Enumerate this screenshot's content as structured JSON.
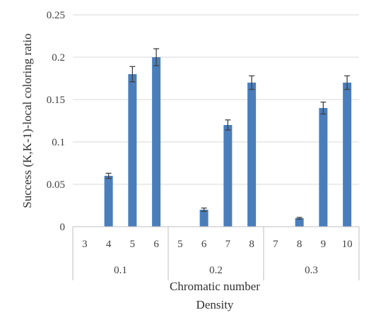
{
  "chart_data": {
    "type": "bar",
    "ylabel": "Success (K,K-1)-local coloring ratio",
    "xlabel": "Chromatic number",
    "xlabel2": "Density",
    "ylim": [
      0,
      0.25
    ],
    "yticks": [
      "0",
      "0.05",
      "0.1",
      "0.15",
      "0.2",
      "0.25"
    ],
    "grid": true,
    "groups": [
      {
        "label": "0.1",
        "categories": [
          "3",
          "4",
          "5",
          "6"
        ],
        "values": [
          0,
          0.06,
          0.18,
          0.2
        ],
        "errors": [
          0,
          0.003,
          0.009,
          0.01
        ]
      },
      {
        "label": "0.2",
        "categories": [
          "5",
          "6",
          "7",
          "8"
        ],
        "values": [
          0,
          0.02,
          0.12,
          0.17
        ],
        "errors": [
          0,
          0.002,
          0.006,
          0.008
        ]
      },
      {
        "label": "0.3",
        "categories": [
          "7",
          "8",
          "9",
          "10"
        ],
        "values": [
          0,
          0.01,
          0.14,
          0.17
        ],
        "errors": [
          0,
          0.001,
          0.007,
          0.008
        ]
      }
    ],
    "colors": {
      "bar": "#4a7ebb",
      "error": "#404040",
      "grid": "#d9d9d9"
    }
  }
}
